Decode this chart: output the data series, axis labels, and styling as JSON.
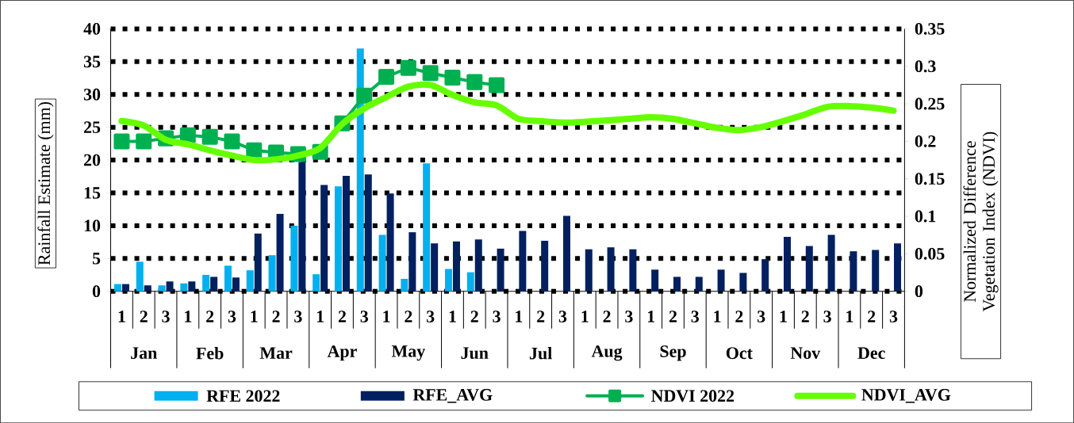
{
  "chart_data": {
    "type": "bar",
    "ylabel": "Rainfall Estimate (mm)",
    "y2label": "Normalized Difference Vegetation Index (NDVI)",
    "categories": [
      "1",
      "2",
      "3",
      "1",
      "2",
      "3",
      "1",
      "2",
      "3",
      "1",
      "2",
      "3",
      "1",
      "2",
      "3",
      "1",
      "2",
      "3",
      "1",
      "2",
      "3",
      "1",
      "2",
      "3",
      "1",
      "2",
      "3",
      "1",
      "2",
      "3",
      "1",
      "2",
      "3",
      "1",
      "2",
      "3"
    ],
    "annotations": [
      "Jan",
      "Feb",
      "Mar",
      "Apr",
      "May",
      "Jun",
      "Jul",
      "Aug",
      "Sep",
      "Oct",
      "Nov",
      "Dec"
    ],
    "series": [
      {
        "name": "RFE 2022",
        "color": "#00b0f0",
        "values": [
          1.1,
          4.5,
          0.9,
          1.2,
          2.5,
          3.9,
          3.2,
          5.5,
          10,
          2.6,
          16,
          37,
          8.6,
          1.9,
          19.5,
          3.4,
          2.9,
          null,
          null,
          null,
          null,
          null,
          null,
          null,
          null,
          null,
          null,
          null,
          null,
          null,
          null,
          null,
          null,
          null,
          null,
          null
        ]
      },
      {
        "name": "RFE_AVG",
        "color": "#002060",
        "values": [
          1.1,
          0.9,
          1.5,
          1.5,
          2.2,
          2.1,
          8.8,
          11.8,
          19.7,
          16.2,
          17.6,
          17.8,
          14.9,
          9.0,
          7.3,
          7.6,
          7.9,
          6.5,
          9.2,
          7.7,
          11.5,
          6.4,
          6.7,
          6.4,
          3.3,
          2.2,
          2.2,
          3.3,
          2.8,
          4.9,
          8.3,
          6.9,
          8.6,
          6.1,
          6.3,
          7.3
        ]
      },
      {
        "name": "NDVI 2022",
        "type": "line",
        "axis": "y2",
        "marker": "square",
        "color": "#00b050",
        "values": [
          0.2,
          0.2,
          0.204,
          0.208,
          0.206,
          0.2,
          0.188,
          0.185,
          0.183,
          0.186,
          0.224,
          0.261,
          0.286,
          0.298,
          0.291,
          0.285,
          0.279,
          0.275,
          null,
          null,
          null,
          null,
          null,
          null,
          null,
          null,
          null,
          null,
          null,
          null,
          null,
          null,
          null,
          null,
          null,
          null
        ]
      },
      {
        "name": "NDVI_AVG",
        "type": "line",
        "axis": "y2",
        "marker": "none",
        "color": "#66ff00",
        "values": [
          0.227,
          0.221,
          0.202,
          0.196,
          0.188,
          0.181,
          0.175,
          0.176,
          0.181,
          0.191,
          0.223,
          0.244,
          0.259,
          0.273,
          0.275,
          0.262,
          0.252,
          0.248,
          0.23,
          0.227,
          0.225,
          0.226,
          0.228,
          0.23,
          0.232,
          0.23,
          0.224,
          0.218,
          0.215,
          0.219,
          0.227,
          0.236,
          0.246,
          0.247,
          0.245,
          0.241
        ]
      }
    ],
    "ylim": [
      0,
      40
    ],
    "yticks": [
      0,
      5,
      10,
      15,
      20,
      25,
      30,
      35,
      40
    ],
    "y2lim": [
      0,
      0.35
    ],
    "y2ticks": [
      0,
      0.05,
      0.1,
      0.15,
      0.2,
      0.25,
      0.3,
      0.35
    ],
    "grid": "y",
    "legend": "bottom"
  }
}
